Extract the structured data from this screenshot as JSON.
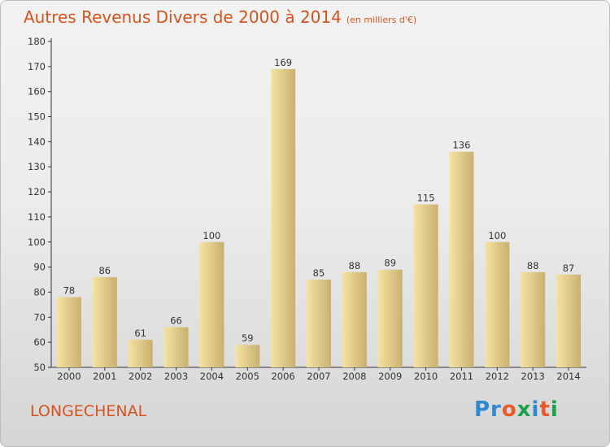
{
  "page": {
    "title": "Autres Revenus Divers de 2000 à 2014",
    "subtitle": "(en milliers d'€)",
    "place": "LONGECHENAL",
    "logo": "Proxiti"
  },
  "chart_data": {
    "type": "bar",
    "title": "Autres Revenus Divers de 2000 à 2014",
    "subtitle": "(en milliers d'€)",
    "xlabel": "",
    "ylabel": "",
    "categories": [
      "2000",
      "2001",
      "2002",
      "2003",
      "2004",
      "2005",
      "2006",
      "2007",
      "2008",
      "2009",
      "2010",
      "2011",
      "2012",
      "2013",
      "2014"
    ],
    "values": [
      78,
      86,
      61,
      66,
      100,
      59,
      169,
      85,
      88,
      89,
      115,
      136,
      100,
      88,
      87
    ],
    "ylim": [
      50,
      180
    ],
    "yticks": [
      50,
      60,
      70,
      80,
      90,
      100,
      110,
      120,
      130,
      140,
      150,
      160,
      170,
      180
    ],
    "grid": false,
    "legend": "none",
    "colors": {
      "bar_light": "#f5e3a2",
      "bar_dark": "#c9b06f",
      "text": "#333333",
      "title": "#d4541e"
    }
  }
}
